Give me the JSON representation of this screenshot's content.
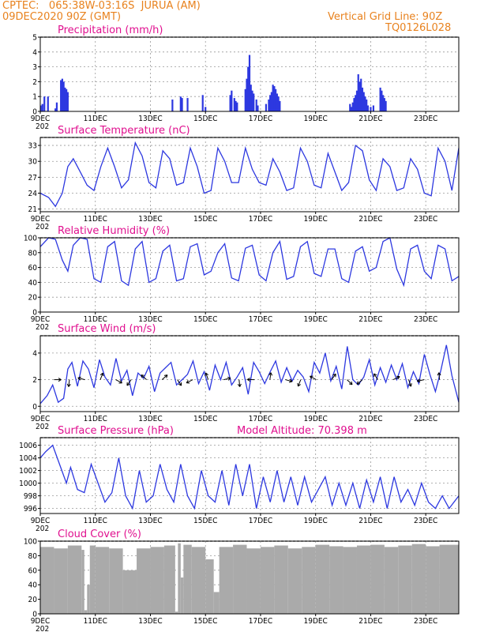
{
  "header": {
    "left_line1": "CPTEC:   065:38W-03:16S  JURUA (AM)",
    "left_line2": "09DEC2020 90Z (GMT)",
    "right_line1": "Vertical Grid Line: 90Z",
    "right_line2": "TQ0126L028"
  },
  "x_axis": {
    "day_labels": [
      "9DEC",
      "11DEC",
      "13DEC",
      "15DEC",
      "17DEC",
      "19DEC",
      "21DEC",
      "23DEC"
    ],
    "year_fragment": "202"
  },
  "colors": {
    "header": "#e8821e",
    "title": "#e0108f",
    "series": "#2d38e0",
    "cloud": "#aaaaaa"
  },
  "chart_data": [
    {
      "type": "bar",
      "title": "Precipitation (mm/h)",
      "ylim": [
        0,
        5
      ],
      "yticks": [
        0,
        1,
        2,
        3,
        4,
        5
      ],
      "x_unit": "days since 9DEC",
      "xlim": [
        0,
        15.2
      ],
      "x": [
        0.02,
        0.08,
        0.15,
        0.28,
        0.55,
        0.6,
        0.75,
        0.8,
        0.85,
        0.9,
        0.95,
        1.0,
        4.8,
        5.1,
        5.15,
        5.35,
        5.9,
        6.0,
        6.9,
        6.95,
        7.05,
        7.1,
        7.15,
        7.45,
        7.5,
        7.55,
        7.6,
        7.65,
        7.7,
        7.75,
        7.85,
        7.9,
        8.2,
        8.3,
        8.35,
        8.4,
        8.45,
        8.5,
        8.55,
        8.6,
        8.65,
        8.7,
        11.25,
        11.3,
        11.35,
        11.4,
        11.45,
        11.5,
        11.55,
        11.6,
        11.65,
        11.7,
        11.75,
        11.8,
        11.85,
        11.9,
        12.0,
        12.1,
        12.35,
        12.4,
        12.45,
        12.5,
        12.55
      ],
      "values": [
        0.4,
        0.5,
        1.0,
        1.0,
        0.2,
        0.6,
        2.1,
        2.2,
        2.0,
        1.6,
        1.5,
        1.3,
        0.8,
        1.0,
        0.9,
        0.9,
        1.1,
        0.3,
        1.1,
        1.4,
        0.9,
        0.7,
        0.6,
        1.5,
        2.2,
        3.0,
        3.8,
        1.8,
        1.4,
        1.2,
        0.8,
        0.4,
        0.5,
        0.8,
        1.1,
        1.3,
        1.8,
        1.7,
        1.5,
        1.2,
        1.0,
        0.7,
        0.5,
        0.3,
        0.6,
        0.9,
        1.1,
        1.4,
        2.5,
        2.0,
        2.2,
        1.6,
        1.3,
        1.0,
        0.8,
        0.4,
        0.3,
        0.4,
        1.6,
        1.4,
        1.1,
        0.9,
        0.7
      ]
    },
    {
      "type": "line",
      "title": "Surface Temperature (nC)",
      "ylim": [
        20.5,
        34.5
      ],
      "yticks": [
        21,
        24,
        27,
        30,
        33
      ],
      "x_unit": "days since 9DEC",
      "xlim": [
        0,
        15.2
      ],
      "x": [
        0,
        0.3,
        0.55,
        0.8,
        1.0,
        1.2,
        1.45,
        1.7,
        1.95,
        2.2,
        2.45,
        2.7,
        2.95,
        3.2,
        3.45,
        3.7,
        3.95,
        4.2,
        4.45,
        4.7,
        4.95,
        5.2,
        5.45,
        5.7,
        5.95,
        6.2,
        6.45,
        6.7,
        6.95,
        7.2,
        7.45,
        7.7,
        7.95,
        8.2,
        8.45,
        8.7,
        8.95,
        9.2,
        9.45,
        9.7,
        9.95,
        10.2,
        10.45,
        10.7,
        10.95,
        11.2,
        11.45,
        11.7,
        11.95,
        12.2,
        12.45,
        12.7,
        12.95,
        13.2,
        13.45,
        13.7,
        13.95,
        14.2,
        14.45,
        14.7,
        14.95,
        15.2
      ],
      "values": [
        24,
        23.2,
        21.5,
        24,
        29,
        30.5,
        28,
        25.5,
        24.5,
        29,
        32.5,
        29,
        25,
        26.5,
        33.5,
        31,
        26,
        25,
        32,
        30.5,
        25.5,
        26,
        32.5,
        29,
        24,
        24.5,
        32.5,
        30,
        26,
        26,
        32.5,
        28.5,
        26,
        25.5,
        30.5,
        28,
        24.5,
        25,
        32.5,
        30,
        25.5,
        25,
        31.5,
        28,
        24.5,
        26,
        33,
        32,
        26.5,
        24.5,
        30.5,
        29,
        24.5,
        25,
        30.5,
        28.5,
        24,
        23.5,
        32.5,
        30,
        24.5,
        32.5
      ]
    },
    {
      "type": "line",
      "title": "Relative Humidity (%)",
      "ylim": [
        0,
        100
      ],
      "yticks": [
        0,
        20,
        40,
        60,
        80,
        100
      ],
      "x_unit": "days since 9DEC",
      "xlim": [
        0,
        15.2
      ],
      "x": [
        0,
        0.3,
        0.55,
        0.8,
        1.0,
        1.2,
        1.45,
        1.7,
        1.95,
        2.2,
        2.45,
        2.7,
        2.95,
        3.2,
        3.45,
        3.7,
        3.95,
        4.2,
        4.45,
        4.7,
        4.95,
        5.2,
        5.45,
        5.7,
        5.95,
        6.2,
        6.45,
        6.7,
        6.95,
        7.2,
        7.45,
        7.7,
        7.95,
        8.2,
        8.45,
        8.7,
        8.95,
        9.2,
        9.45,
        9.7,
        9.95,
        10.2,
        10.45,
        10.7,
        10.95,
        11.2,
        11.45,
        11.7,
        11.95,
        12.2,
        12.45,
        12.7,
        12.95,
        13.2,
        13.45,
        13.7,
        13.95,
        14.2,
        14.45,
        14.7,
        14.95,
        15.2
      ],
      "values": [
        88,
        100,
        98,
        70,
        55,
        90,
        100,
        98,
        45,
        40,
        88,
        95,
        42,
        36,
        85,
        95,
        40,
        45,
        82,
        90,
        42,
        45,
        88,
        92,
        50,
        55,
        80,
        92,
        46,
        42,
        86,
        90,
        50,
        42,
        80,
        95,
        44,
        48,
        88,
        95,
        52,
        48,
        85,
        85,
        45,
        40,
        82,
        88,
        55,
        60,
        95,
        100,
        58,
        36,
        85,
        90,
        55,
        45,
        90,
        85,
        42,
        48
      ]
    },
    {
      "type": "line",
      "title": "Surface Wind (m/s)",
      "ylim": [
        -0.4,
        5.3
      ],
      "yticks": [
        0,
        2,
        4
      ],
      "x_unit": "days since 9DEC",
      "xlim": [
        0,
        15.2
      ],
      "x": [
        0,
        0.25,
        0.45,
        0.65,
        0.85,
        1.0,
        1.15,
        1.35,
        1.55,
        1.75,
        1.95,
        2.15,
        2.35,
        2.55,
        2.75,
        2.95,
        3.15,
        3.35,
        3.55,
        3.75,
        3.95,
        4.15,
        4.35,
        4.55,
        4.75,
        4.95,
        5.15,
        5.35,
        5.55,
        5.75,
        5.95,
        6.15,
        6.35,
        6.55,
        6.75,
        6.95,
        7.15,
        7.35,
        7.55,
        7.75,
        7.95,
        8.15,
        8.35,
        8.55,
        8.75,
        8.95,
        9.15,
        9.35,
        9.55,
        9.75,
        9.95,
        10.15,
        10.35,
        10.55,
        10.75,
        10.95,
        11.15,
        11.35,
        11.55,
        11.75,
        11.95,
        12.15,
        12.35,
        12.55,
        12.75,
        12.95,
        13.15,
        13.35,
        13.55,
        13.75,
        13.95,
        14.15,
        14.35,
        14.55,
        14.75,
        14.95,
        15.2
      ],
      "values": [
        0.2,
        0.8,
        1.6,
        0.3,
        0.6,
        2.8,
        3.3,
        1.5,
        3.4,
        2.8,
        1.4,
        3.5,
        2.2,
        1.6,
        3.6,
        1.9,
        2.7,
        0.8,
        2.5,
        2.1,
        3.0,
        1.1,
        2.5,
        2.9,
        3.3,
        1.6,
        2.0,
        2.4,
        3.4,
        1.7,
        2.6,
        1.2,
        3.1,
        2.0,
        3.3,
        1.6,
        2.2,
        2.9,
        0.9,
        3.3,
        2.6,
        1.7,
        2.6,
        3.4,
        1.8,
        2.9,
        1.9,
        2.7,
        2.2,
        1.1,
        3.3,
        2.5,
        4.0,
        1.9,
        3.0,
        1.3,
        4.5,
        2.0,
        1.6,
        2.2,
        3.5,
        1.6,
        2.9,
        1.8,
        3.1,
        2.0,
        3.2,
        1.4,
        2.6,
        1.7,
        3.9,
        2.4,
        1.1,
        2.7,
        4.6,
        2.3,
        0.3
      ]
    },
    {
      "type": "line",
      "title": "Surface Pressure (hPa)",
      "annotation": "Model Altitude: 70.398 m",
      "ylim": [
        995.2,
        1007.2
      ],
      "yticks": [
        996,
        998,
        1000,
        1002,
        1004,
        1006
      ],
      "x_unit": "days since 9DEC",
      "xlim": [
        0,
        15.2
      ],
      "x": [
        0,
        0.2,
        0.45,
        0.7,
        0.95,
        1.1,
        1.35,
        1.6,
        1.85,
        2.1,
        2.35,
        2.6,
        2.85,
        3.1,
        3.35,
        3.6,
        3.85,
        4.1,
        4.35,
        4.6,
        4.85,
        5.1,
        5.35,
        5.6,
        5.85,
        6.1,
        6.35,
        6.6,
        6.85,
        7.1,
        7.35,
        7.6,
        7.85,
        8.1,
        8.35,
        8.6,
        8.85,
        9.1,
        9.35,
        9.6,
        9.85,
        10.1,
        10.35,
        10.6,
        10.85,
        11.1,
        11.35,
        11.6,
        11.85,
        12.1,
        12.35,
        12.6,
        12.85,
        13.1,
        13.35,
        13.6,
        13.85,
        14.1,
        14.35,
        14.6,
        14.85,
        15.2
      ],
      "values": [
        1004,
        1005,
        1006,
        1003,
        1000,
        1002.5,
        999,
        998.5,
        1003,
        1000,
        997,
        998.5,
        1004,
        998,
        996,
        1002,
        997,
        998,
        1003,
        999,
        997,
        1003,
        998,
        996,
        1002,
        998,
        997,
        1002,
        996.5,
        1003,
        998,
        1003,
        996,
        1001,
        997,
        1002,
        997,
        1001,
        996.5,
        1001,
        997,
        999,
        1001,
        996.5,
        1000,
        996.5,
        1000,
        996,
        1000.5,
        997,
        1001,
        996,
        1001,
        997,
        999,
        996.5,
        1000,
        997,
        996,
        998,
        996,
        998
      ]
    },
    {
      "type": "area",
      "title": "Cloud Cover (%)",
      "ylim": [
        0,
        100
      ],
      "yticks": [
        0,
        20,
        40,
        60,
        80,
        100
      ],
      "x_unit": "days since 9DEC",
      "xlim": [
        0,
        15.2
      ],
      "x": [
        0,
        0.5,
        1.0,
        1.5,
        1.6,
        1.7,
        1.8,
        2.0,
        2.5,
        3.0,
        3.5,
        4.0,
        4.5,
        4.9,
        5.0,
        5.1,
        5.2,
        5.5,
        6.0,
        6.3,
        6.5,
        7.0,
        7.5,
        8.0,
        8.5,
        9.0,
        9.5,
        10.0,
        10.5,
        11.0,
        11.5,
        12.0,
        12.5,
        13.0,
        13.5,
        14.0,
        14.5,
        15.2
      ],
      "values": [
        92,
        90,
        94,
        88,
        5,
        40,
        94,
        92,
        90,
        60,
        90,
        92,
        94,
        3,
        97,
        50,
        95,
        92,
        75,
        30,
        92,
        95,
        90,
        92,
        94,
        90,
        92,
        95,
        93,
        92,
        94,
        95,
        92,
        94,
        96,
        93,
        95,
        95
      ]
    }
  ]
}
